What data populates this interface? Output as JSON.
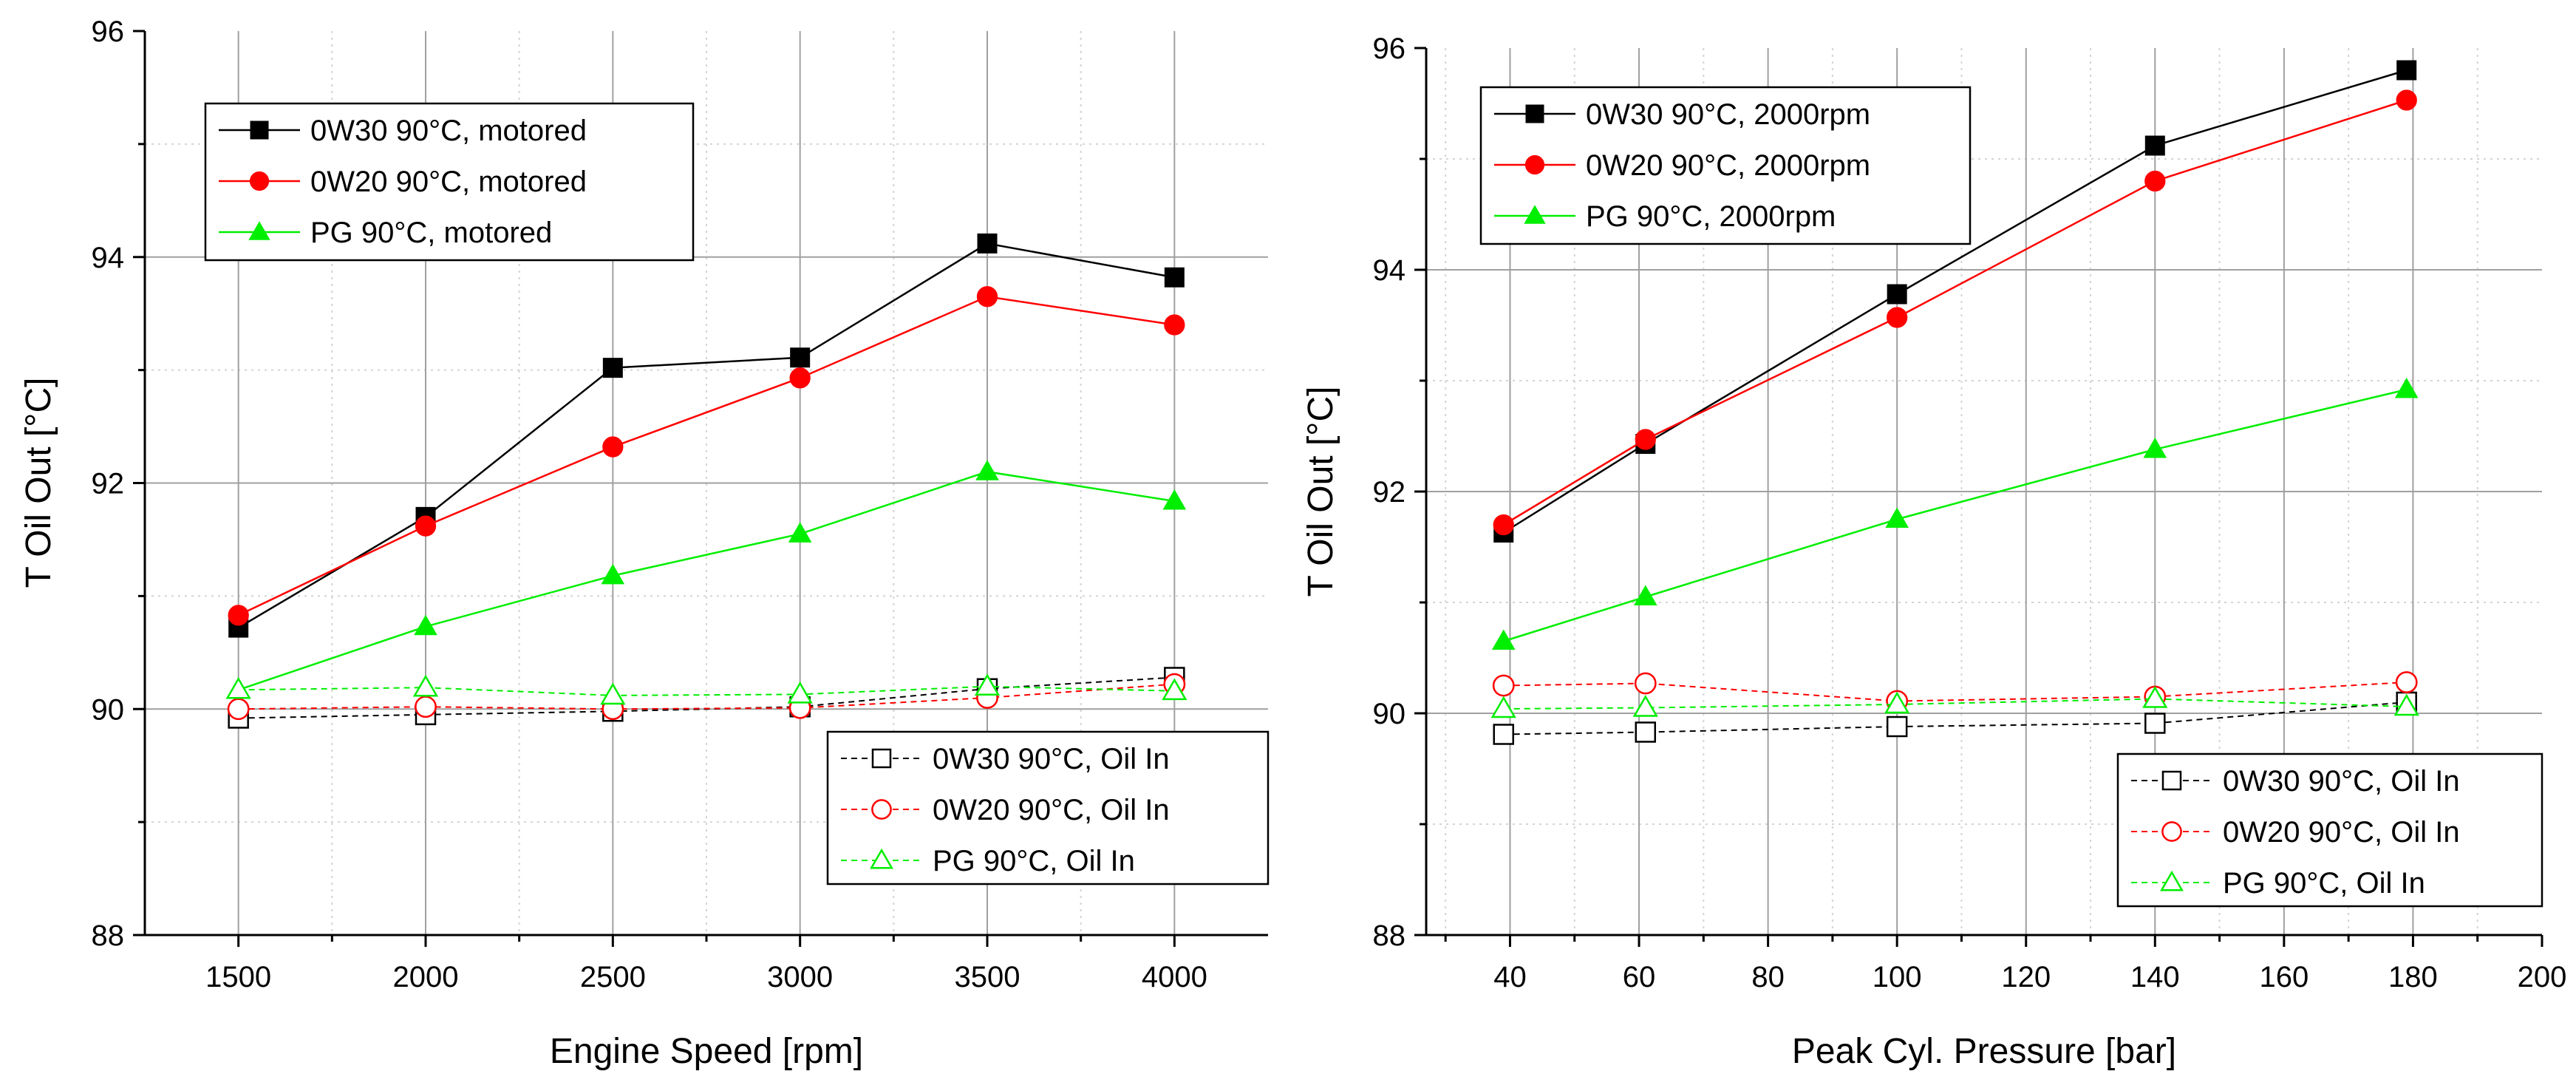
{
  "chart_data": [
    {
      "type": "line",
      "xlabel": "Engine Speed [rpm]",
      "ylabel": "T Oil Out [°C]",
      "xlim": [
        1250,
        4250
      ],
      "ylim": [
        88,
        96
      ],
      "xticks": [
        1500,
        2000,
        2500,
        3000,
        3500,
        4000
      ],
      "yticks": [
        88,
        90,
        92,
        94,
        96
      ],
      "grid": true,
      "legends": {
        "top": "upper-left",
        "bottom": "lower-right"
      },
      "series": [
        {
          "name": "0W30 90°C, motored",
          "color": "#000000",
          "marker": "square",
          "filled": true,
          "dashed": false,
          "legend_group": "top",
          "x": [
            1500,
            2000,
            2500,
            3000,
            3500,
            4000
          ],
          "y": [
            90.72,
            91.7,
            93.02,
            93.11,
            94.12,
            93.82
          ]
        },
        {
          "name": "0W20 90°C, motored",
          "color": "#ff0000",
          "marker": "circle",
          "filled": true,
          "dashed": false,
          "legend_group": "top",
          "x": [
            1500,
            2000,
            2500,
            3000,
            3500,
            4000
          ],
          "y": [
            90.83,
            91.62,
            92.32,
            92.93,
            93.65,
            93.4
          ]
        },
        {
          "name": "PG 90°C, motored",
          "color": "#00ee00",
          "marker": "triangle",
          "filled": true,
          "dashed": false,
          "legend_group": "top",
          "x": [
            1500,
            2000,
            2500,
            3000,
            3500,
            4000
          ],
          "y": [
            90.17,
            90.73,
            91.18,
            91.55,
            92.1,
            91.84
          ]
        },
        {
          "name": "0W30 90°C, Oil In",
          "color": "#000000",
          "marker": "square",
          "filled": false,
          "dashed": true,
          "legend_group": "bottom",
          "x": [
            1500,
            2000,
            2500,
            3000,
            3500,
            4000
          ],
          "y": [
            89.92,
            89.95,
            89.98,
            90.02,
            90.18,
            90.28
          ]
        },
        {
          "name": "0W20 90°C, Oil In",
          "color": "#ff0000",
          "marker": "circle",
          "filled": false,
          "dashed": true,
          "legend_group": "bottom",
          "x": [
            1500,
            2000,
            2500,
            3000,
            3500,
            4000
          ],
          "y": [
            90.0,
            90.02,
            90.0,
            90.01,
            90.1,
            90.22
          ]
        },
        {
          "name": "PG 90°C, Oil In",
          "color": "#00ee00",
          "marker": "triangle",
          "filled": false,
          "dashed": true,
          "legend_group": "bottom",
          "x": [
            1500,
            2000,
            2500,
            3000,
            3500,
            4000
          ],
          "y": [
            90.17,
            90.19,
            90.12,
            90.13,
            90.2,
            90.16
          ]
        }
      ]
    },
    {
      "type": "line",
      "xlabel": "Peak Cyl. Pressure [bar]",
      "ylabel": "T Oil Out [°C]",
      "xlim": [
        27,
        200
      ],
      "ylim": [
        88,
        96
      ],
      "xticks": [
        40,
        60,
        80,
        100,
        120,
        140,
        160,
        180,
        200
      ],
      "yticks": [
        88,
        90,
        92,
        94,
        96
      ],
      "grid": true,
      "legends": {
        "top": "upper-left",
        "bottom": "lower-right"
      },
      "series": [
        {
          "name": "0W30 90°C, 2000rpm",
          "color": "#000000",
          "marker": "square",
          "filled": true,
          "dashed": false,
          "legend_group": "top",
          "x": [
            39,
            61,
            100,
            140,
            179
          ],
          "y": [
            91.63,
            92.43,
            93.78,
            95.12,
            95.8
          ]
        },
        {
          "name": "0W20 90°C, 2000rpm",
          "color": "#ff0000",
          "marker": "circle",
          "filled": true,
          "dashed": false,
          "legend_group": "top",
          "x": [
            39,
            61,
            100,
            140,
            179
          ],
          "y": [
            91.7,
            92.47,
            93.57,
            94.8,
            95.53
          ]
        },
        {
          "name": "PG 90°C, 2000rpm",
          "color": "#00ee00",
          "marker": "triangle",
          "filled": true,
          "dashed": false,
          "legend_group": "top",
          "x": [
            39,
            61,
            100,
            140,
            179
          ],
          "y": [
            90.65,
            91.05,
            91.75,
            92.38,
            92.92
          ]
        },
        {
          "name": "0W30 90°C, Oil In",
          "color": "#000000",
          "marker": "square",
          "filled": false,
          "dashed": true,
          "legend_group": "bottom",
          "x": [
            39,
            61,
            100,
            140,
            179
          ],
          "y": [
            89.81,
            89.83,
            89.88,
            89.91,
            90.1
          ]
        },
        {
          "name": "0W20 90°C, Oil In",
          "color": "#ff0000",
          "marker": "circle",
          "filled": false,
          "dashed": true,
          "legend_group": "bottom",
          "x": [
            39,
            61,
            100,
            140,
            179
          ],
          "y": [
            90.25,
            90.27,
            90.11,
            90.15,
            90.28
          ]
        },
        {
          "name": "PG 90°C, Oil In",
          "color": "#00ee00",
          "marker": "triangle",
          "filled": false,
          "dashed": true,
          "legend_group": "bottom",
          "x": [
            39,
            61,
            100,
            140,
            179
          ],
          "y": [
            90.04,
            90.05,
            90.08,
            90.13,
            90.06
          ]
        }
      ]
    }
  ]
}
